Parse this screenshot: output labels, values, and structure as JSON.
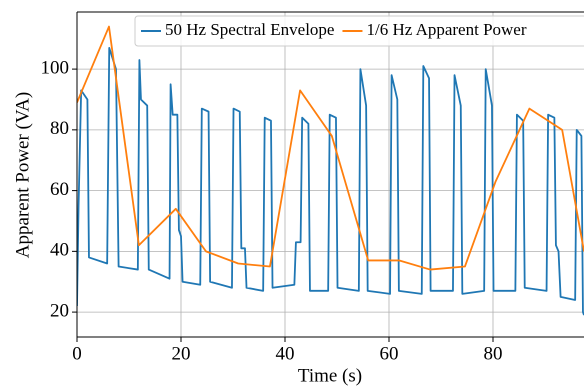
{
  "chart_data": {
    "type": "line",
    "xlabel": "Time (s)",
    "ylabel": "Apparent Power (VA)",
    "xlim": [
      0,
      97.5
    ],
    "ylim": [
      11.8,
      118.8
    ],
    "xticks": [
      0,
      20,
      40,
      60,
      80
    ],
    "yticks": [
      20,
      40,
      60,
      80,
      100
    ],
    "grid": true,
    "legend": "upper right",
    "series": [
      {
        "name": "50 Hz Spectral Envelope",
        "color": "#1f77b4",
        "x": [
          0,
          0.3,
          0.8,
          2,
          2.3,
          5.8,
          6.2,
          7.5,
          8,
          11.7,
          12,
          12.3,
          13.5,
          13.8,
          17.8,
          18,
          18.4,
          19.3,
          19.6,
          20,
          20.3,
          23.7,
          24,
          25.3,
          25.6,
          29.8,
          30.1,
          31.3,
          31.6,
          32.3,
          32.6,
          35.8,
          36.1,
          37.3,
          37.6,
          41.8,
          42.1,
          43,
          43.3,
          44.5,
          44.8,
          48.3,
          48.6,
          49.8,
          50.1,
          54.2,
          54.5,
          55.6,
          55.9,
          60.2,
          60.5,
          61.6,
          61.9,
          66.3,
          66.6,
          67.7,
          68,
          72.3,
          72.6,
          73.8,
          74.1,
          78.3,
          78.6,
          79.8,
          80.1,
          84.3,
          84.6,
          85.8,
          86.1,
          90.3,
          90.6,
          91.8,
          92.1,
          92.6,
          93,
          95.8,
          96.1,
          97,
          97.3,
          97.5
        ],
        "values": [
          22,
          55,
          93,
          90,
          38,
          36,
          107,
          100,
          35,
          34,
          103,
          90,
          88,
          34,
          31,
          95,
          85,
          85,
          47,
          45,
          30,
          29,
          87,
          86,
          30,
          28,
          87,
          86,
          41,
          41,
          28,
          27,
          84,
          83,
          28,
          29,
          43,
          43,
          84,
          82,
          27,
          27,
          85,
          84,
          28,
          27,
          100,
          88,
          27,
          26,
          98,
          90,
          27,
          26,
          101,
          97,
          27,
          27,
          98,
          88,
          26,
          27,
          100,
          88,
          27,
          27,
          85,
          83,
          28,
          27,
          85,
          84,
          42,
          40,
          25,
          24,
          80,
          78,
          20,
          19
        ]
      },
      {
        "name": "1/6 Hz Apparent Power",
        "color": "#ff7f0e",
        "x": [
          0,
          6.15,
          11.9,
          19,
          24.8,
          31,
          37.1,
          42.9,
          49,
          56,
          62,
          67.9,
          74.6,
          80.5,
          87,
          93.3,
          97.5
        ],
        "values": [
          89,
          114,
          42,
          54,
          40,
          36,
          35,
          93,
          78,
          37,
          37,
          34,
          35,
          63,
          87,
          80,
          40
        ]
      }
    ]
  }
}
